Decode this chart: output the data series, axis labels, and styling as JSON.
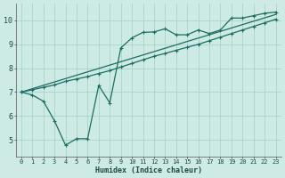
{
  "background_color": "#ceeae4",
  "grid_color": "#a8d4cc",
  "line_color": "#1a6e62",
  "xlabel": "Humidex (Indice chaleur)",
  "xlim": [
    -0.5,
    23.5
  ],
  "ylim": [
    4.3,
    10.7
  ],
  "xticks": [
    0,
    1,
    2,
    3,
    4,
    5,
    6,
    7,
    8,
    9,
    10,
    11,
    12,
    13,
    14,
    15,
    16,
    17,
    18,
    19,
    20,
    21,
    22,
    23
  ],
  "yticks": [
    5,
    6,
    7,
    8,
    9,
    10
  ],
  "line1_x": [
    0,
    1,
    2,
    3,
    4,
    5,
    6,
    7,
    8,
    9,
    10,
    11,
    12,
    13,
    14,
    15,
    16,
    17,
    18,
    19,
    20,
    21,
    22,
    23
  ],
  "line1_y": [
    7.0,
    6.88,
    6.62,
    5.8,
    4.78,
    5.05,
    5.05,
    7.28,
    6.55,
    8.85,
    9.27,
    9.5,
    9.52,
    9.65,
    9.4,
    9.4,
    9.6,
    9.45,
    9.6,
    10.1,
    10.1,
    10.2,
    10.3,
    10.35
  ],
  "line2_x": [
    0,
    23
  ],
  "line2_y": [
    7.0,
    10.25
  ],
  "line3_x": [
    0,
    1,
    2,
    3,
    4,
    5,
    6,
    7,
    8,
    9,
    10,
    11,
    12,
    13,
    14,
    15,
    16,
    17,
    18,
    19,
    20,
    21,
    22,
    23
  ],
  "line3_y": [
    7.0,
    7.1,
    7.2,
    7.3,
    7.45,
    7.55,
    7.65,
    7.78,
    7.9,
    8.05,
    8.2,
    8.35,
    8.5,
    8.62,
    8.75,
    8.88,
    9.0,
    9.15,
    9.3,
    9.45,
    9.6,
    9.75,
    9.9,
    10.05
  ]
}
